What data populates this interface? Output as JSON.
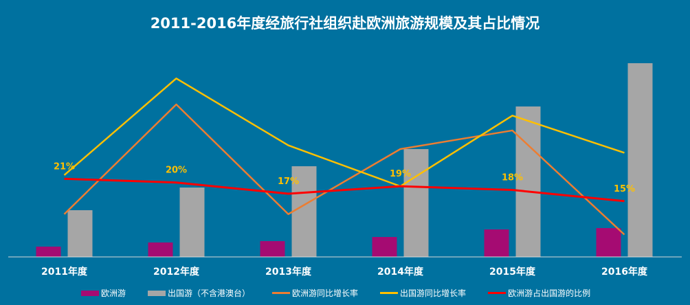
{
  "chart_data": {
    "type": "bar+line",
    "title": "2011-2016年度经旅行社组织赴欧洲旅游规模及其占比情况",
    "categories": [
      "2011年度",
      "2012年度",
      "2013年度",
      "2014年度",
      "2015年度",
      "2016年度"
    ],
    "bar_series": [
      {
        "name": "欧洲游",
        "color": "#a50b72",
        "values": [
          1.5,
          2.1,
          2.3,
          2.9,
          4.0,
          4.2
        ]
      },
      {
        "name": "出国游（不含港澳台）",
        "color": "#a6a6a6",
        "values": [
          6.8,
          10.1,
          13.2,
          15.7,
          21.9,
          28.2
        ]
      }
    ],
    "line_series": [
      {
        "name": "欧洲游同比增长率",
        "color": "#ed7d31",
        "values": [
          11.5,
          41,
          11.5,
          29,
          34,
          6
        ]
      },
      {
        "name": "出国游同比增长率",
        "color": "#ffc000",
        "values": [
          22,
          48,
          30,
          19,
          38,
          28
        ]
      },
      {
        "name": "欧洲游占出国游的比例",
        "color": "#ff0000",
        "values": [
          21,
          20,
          17,
          19,
          18,
          15
        ]
      }
    ],
    "data_labels": [
      "21%",
      "20%",
      "17%",
      "19%",
      "18%",
      "15%"
    ],
    "bar_axis_max": 31.4,
    "line_axis_max_percent": 58,
    "legend_position": "bottom",
    "grid": false
  }
}
